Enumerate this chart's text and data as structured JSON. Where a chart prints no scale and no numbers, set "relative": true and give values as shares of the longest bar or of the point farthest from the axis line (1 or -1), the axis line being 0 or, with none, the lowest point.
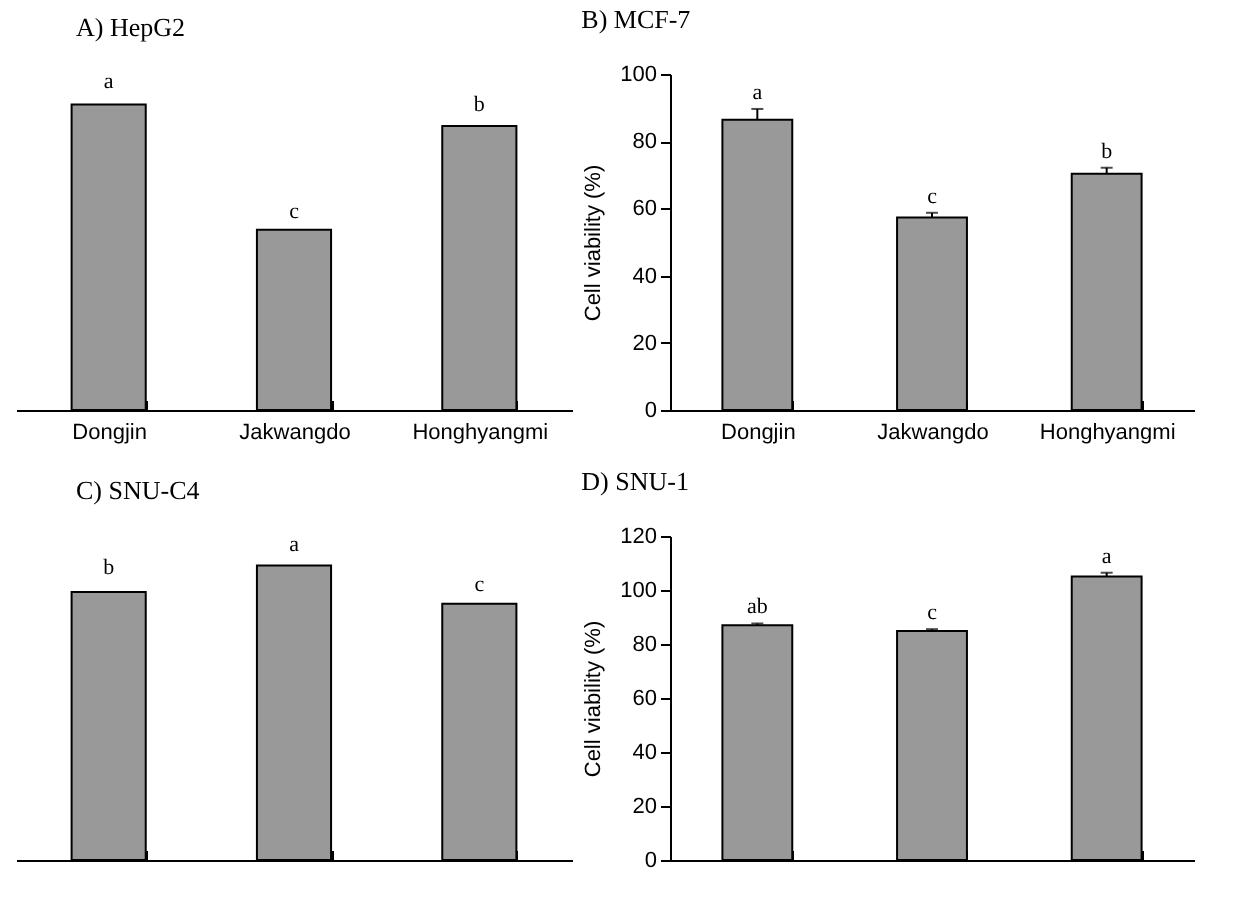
{
  "chart_data": [
    {
      "type": "bar",
      "title": "A) HepG2",
      "categories": [
        "Dongjin",
        "Jakwangdo",
        "Honghyangmi"
      ],
      "relative": true,
      "tick_labels": "x",
      "series": [
        {
          "color": "#999999",
          "values": [
            1,
            0.59,
            0.93
          ]
        }
      ],
      "annotations": [
        {
          "text": "a",
          "x": "Dongjin",
          "y": 1.02
        },
        {
          "text": "c",
          "x": "Jakwangdo",
          "y": 0.595
        },
        {
          "text": "b",
          "x": "Honghyangmi",
          "y": 0.947
        }
      ]
    },
    {
      "type": "bar",
      "title": "B) MCF-7",
      "ylabel": "Cell viability (%)",
      "categories": [
        "Dongjin",
        "Jakwangdo",
        "Honghyangmi"
      ],
      "ylim": [
        0,
        100
      ],
      "yticks": [
        0,
        20,
        40,
        60,
        80,
        100
      ],
      "series": [
        {
          "color": "#999999",
          "values": [
            86.4,
            57.3,
            70.3
          ],
          "errors": [
            3.2,
            1.4,
            1.8
          ]
        }
      ],
      "annotations": [
        {
          "text": "a",
          "x": "Dongjin",
          "y": 89.6
        },
        {
          "text": "c",
          "x": "Jakwangdo",
          "y": 58.7
        },
        {
          "text": "b",
          "x": "Honghyangmi",
          "y": 72.1
        }
      ]
    },
    {
      "type": "bar",
      "title": "C) SNU-C4",
      "categories": [
        null,
        null,
        null
      ],
      "relative": true,
      "tick_labels": false,
      "series": [
        {
          "color": "#999999",
          "values": [
            0.91,
            1,
            0.87
          ]
        }
      ],
      "annotations": [
        {
          "text": "b",
          "y": 0.938
        },
        {
          "text": "a",
          "y": 1.014
        },
        {
          "text": "c",
          "y": 0.879
        }
      ]
    },
    {
      "type": "bar",
      "title": "D) SNU-1",
      "ylabel": "Cell viability (%)",
      "categories": [
        null,
        null,
        null
      ],
      "ylim": [
        0,
        120
      ],
      "yticks": [
        0,
        20,
        40,
        60,
        80,
        100,
        120
      ],
      "tick_labels": "y",
      "series": [
        {
          "color": "#999999",
          "values": [
            86.9,
            84.8,
            105
          ],
          "errors": [
            0.7,
            0.7,
            1.4
          ]
        }
      ],
      "annotations": [
        {
          "text": "ab",
          "y": 87.6
        },
        {
          "text": "c",
          "y": 85.5
        },
        {
          "text": "a",
          "y": 106.4
        }
      ]
    }
  ]
}
